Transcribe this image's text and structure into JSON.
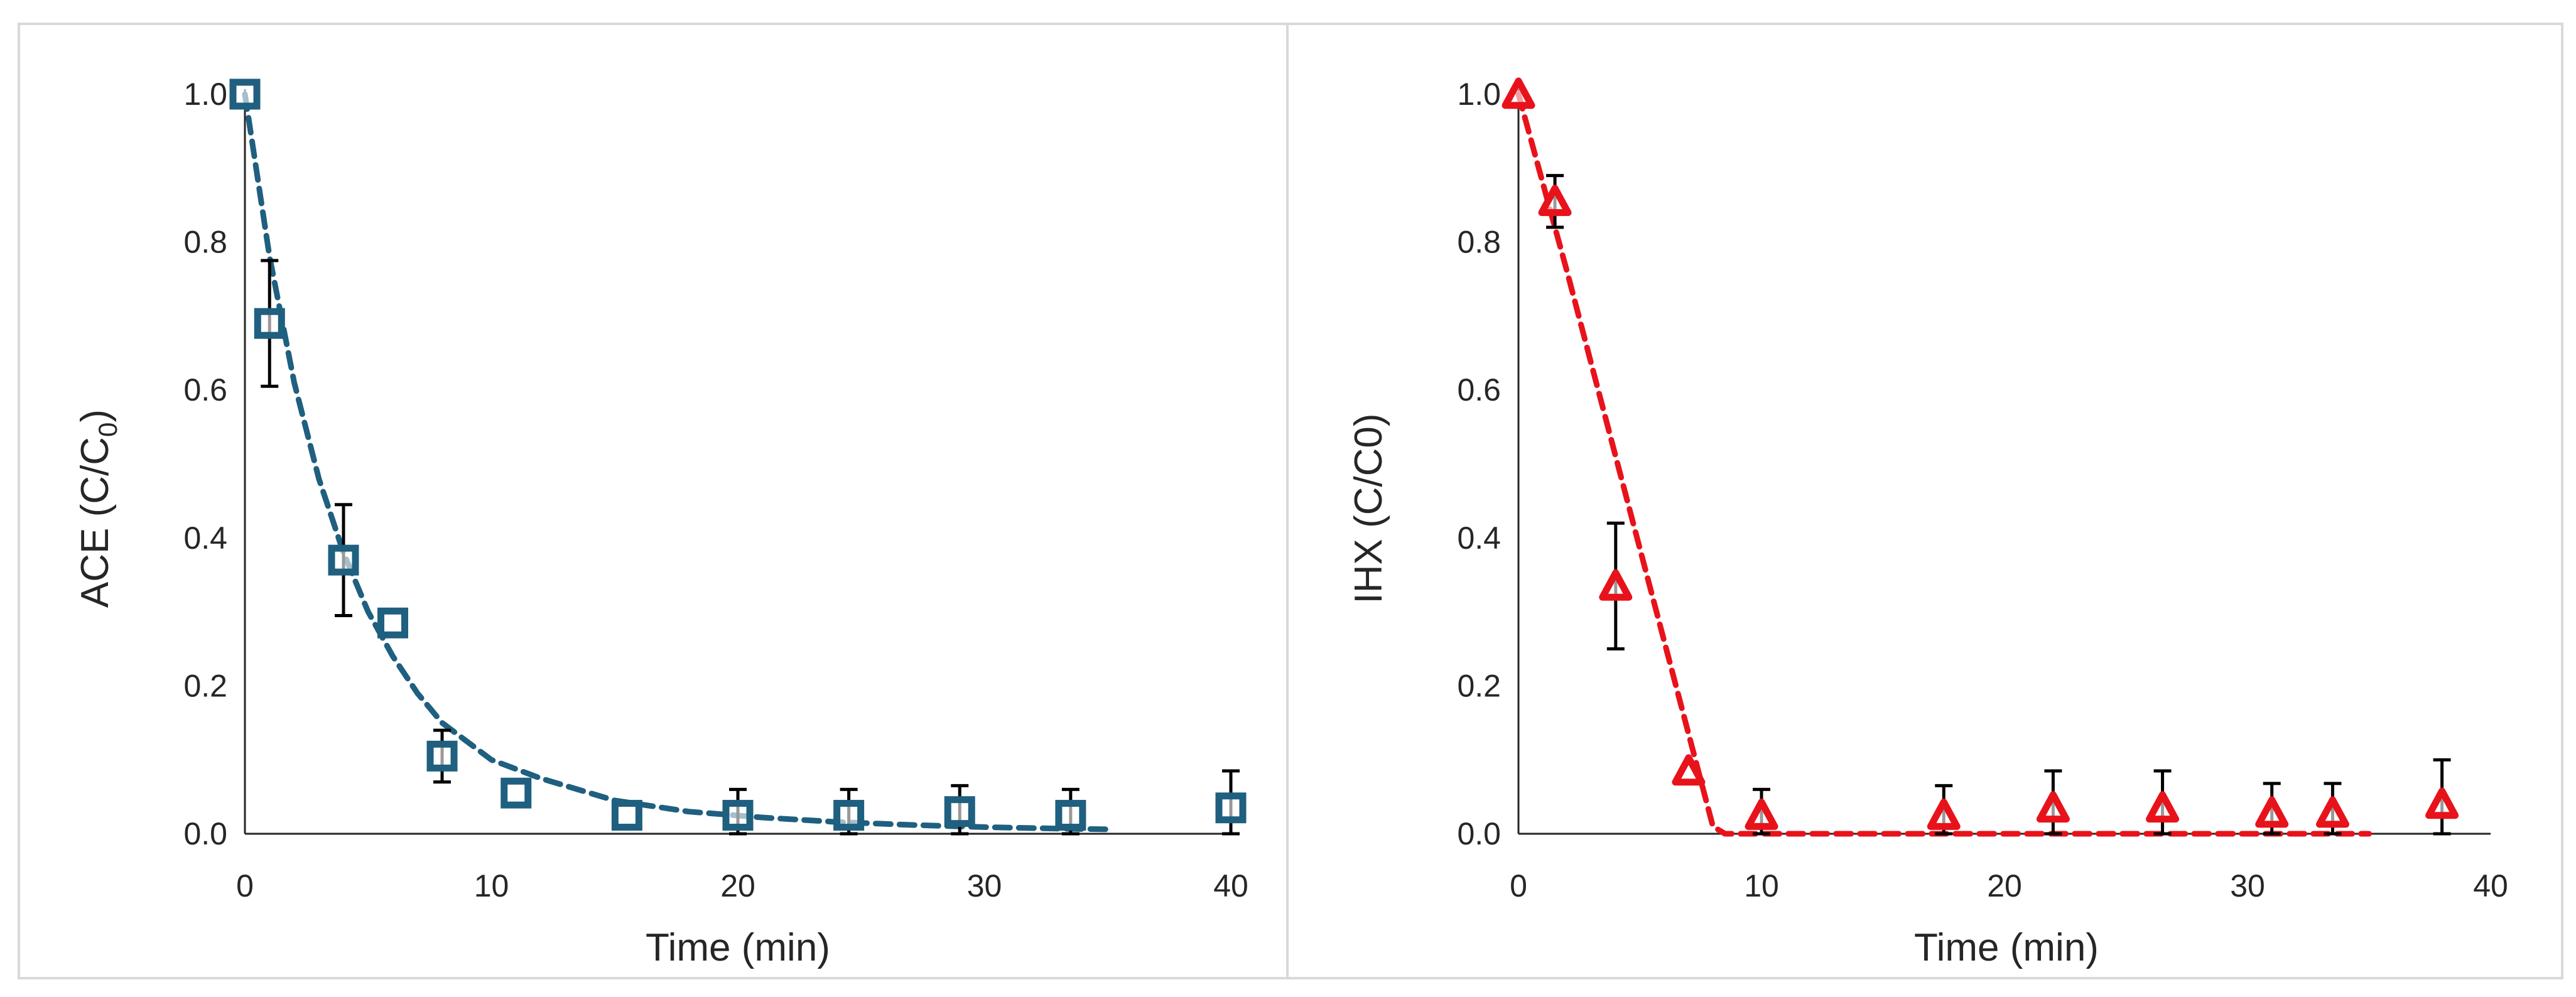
{
  "chart_data": [
    {
      "type": "scatter",
      "xlabel": "Time (min)",
      "ylabel": "ACE (C/C",
      "ylabel_sub": "0",
      "ylabel_end": ")",
      "xlim": [
        0,
        40
      ],
      "ylim": [
        0,
        1
      ],
      "xticks": [
        "0",
        "10",
        "20",
        "30",
        "40"
      ],
      "yticks": [
        "0.0",
        "0.2",
        "0.4",
        "0.6",
        "0.8",
        "1.0"
      ],
      "grid": false,
      "legend": "none",
      "marker": "square",
      "color": "#1f5f7f",
      "series": {
        "x": [
          0,
          1,
          4,
          6,
          8,
          11,
          15.5,
          20,
          24.5,
          29,
          33.5,
          40
        ],
        "y": [
          1.0,
          0.69,
          0.37,
          0.285,
          0.105,
          0.055,
          0.025,
          0.025,
          0.025,
          0.03,
          0.025,
          0.035
        ],
        "err": [
          0,
          0.085,
          0.075,
          0,
          0.035,
          0,
          0,
          0.035,
          0.035,
          0.035,
          0.035,
          0.05
        ]
      },
      "fit": {
        "style": "dashed",
        "x": [
          0,
          1,
          2,
          3,
          4,
          5,
          6,
          7,
          8,
          10,
          12,
          15,
          18,
          21,
          24,
          27,
          30,
          33,
          35
        ],
        "y": [
          1.0,
          0.78,
          0.61,
          0.48,
          0.38,
          0.3,
          0.24,
          0.19,
          0.15,
          0.1,
          0.075,
          0.045,
          0.03,
          0.022,
          0.016,
          0.012,
          0.009,
          0.007,
          0.006
        ]
      }
    },
    {
      "type": "scatter",
      "xlabel": "Time (min)",
      "ylabel": "IHX (C/C0)",
      "xlim": [
        0,
        40
      ],
      "ylim": [
        0,
        1
      ],
      "xticks": [
        "0",
        "10",
        "20",
        "30",
        "40"
      ],
      "yticks": [
        "0.0",
        "0.2",
        "0.4",
        "0.6",
        "0.8",
        "1.0"
      ],
      "grid": false,
      "legend": "none",
      "marker": "triangle",
      "color": "#e8121b",
      "series": {
        "x": [
          0,
          1.5,
          4,
          7,
          10,
          17.5,
          22,
          26.5,
          31,
          33.5,
          38
        ],
        "y": [
          1.0,
          0.855,
          0.335,
          0.085,
          0.025,
          0.025,
          0.035,
          0.035,
          0.028,
          0.028,
          0.04
        ],
        "err": [
          0,
          0.035,
          0.085,
          0,
          0.035,
          0.04,
          0.05,
          0.05,
          0.04,
          0.04,
          0.06
        ]
      },
      "fit": {
        "style": "dashed",
        "x": [
          0,
          1,
          2,
          3,
          4,
          5,
          6,
          7,
          8,
          8.5,
          35
        ],
        "y": [
          1.0,
          0.88,
          0.76,
          0.635,
          0.51,
          0.385,
          0.26,
          0.135,
          0.01,
          0,
          0
        ]
      }
    }
  ]
}
